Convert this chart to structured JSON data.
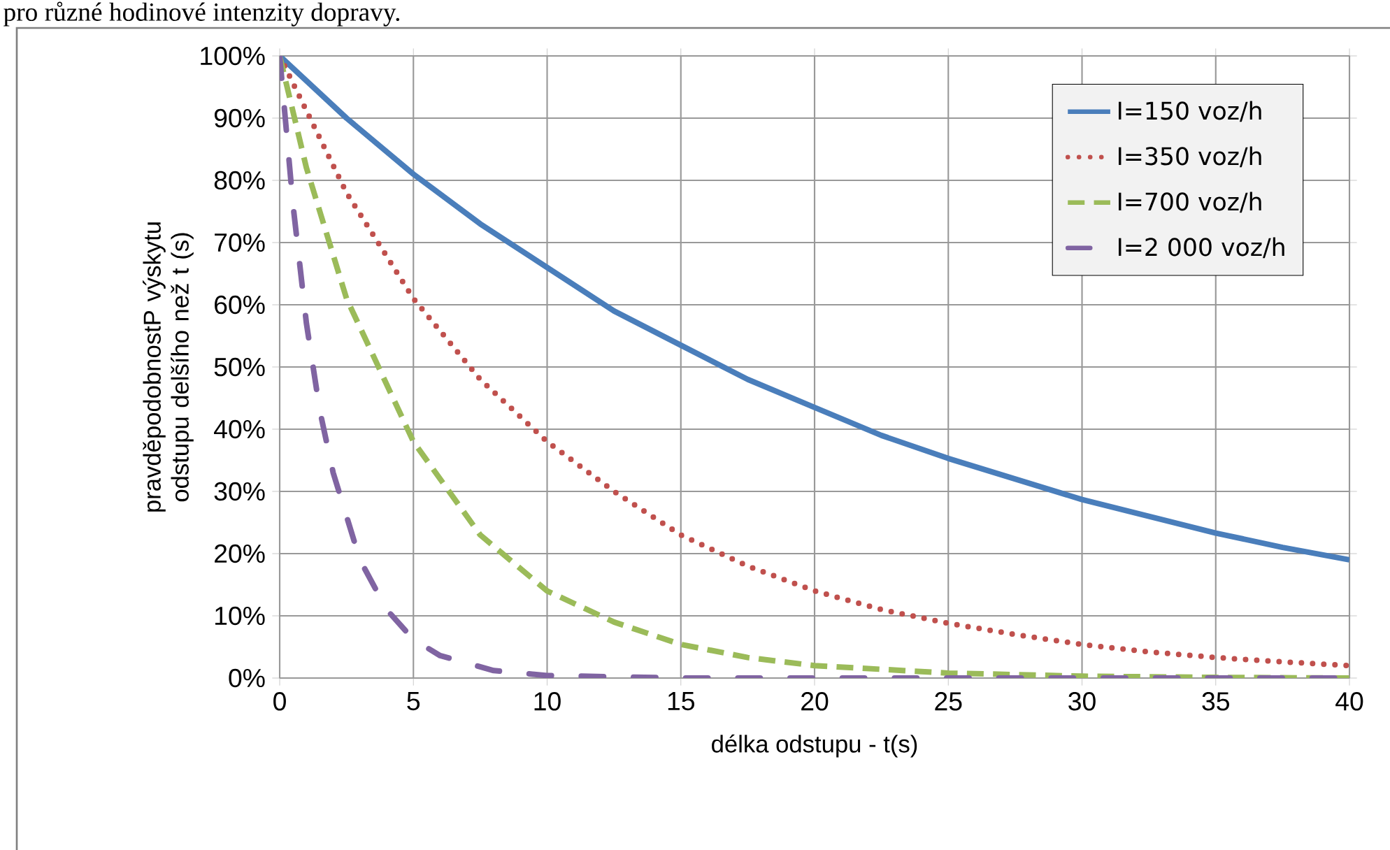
{
  "chart_data": {
    "type": "line",
    "annotations": [
      "pro různé hodinové intenzity dopravy."
    ],
    "xlabel": "délka odstupu - t(s)",
    "ylabel": "pravděpodobnostP  výskytu odstupu delšího než t (s)",
    "xlim": [
      0,
      40
    ],
    "ylim": [
      0,
      100
    ],
    "xticks": [
      0,
      5,
      10,
      15,
      20,
      25,
      30,
      35,
      40
    ],
    "yticks": [
      {
        "value": 0,
        "label": "0%"
      },
      {
        "value": 10,
        "label": "10%"
      },
      {
        "value": 20,
        "label": "20%"
      },
      {
        "value": 30,
        "label": "30%"
      },
      {
        "value": 40,
        "label": "40%"
      },
      {
        "value": 50,
        "label": "50%"
      },
      {
        "value": 60,
        "label": "60%"
      },
      {
        "value": 70,
        "label": "70%"
      },
      {
        "value": 80,
        "label": "80%"
      },
      {
        "value": 90,
        "label": "90%"
      },
      {
        "value": 100,
        "label": "100%"
      }
    ],
    "grid": true,
    "legend": "top right",
    "series": [
      {
        "name": "I=150 voz/h",
        "color": "#4a7ebb",
        "line_style": "solid",
        "x": [
          0,
          2.5,
          5,
          7.5,
          10,
          12.5,
          15,
          17.5,
          20,
          22.5,
          25,
          27.5,
          30,
          32.5,
          35,
          37.5,
          40
        ],
        "values": [
          100,
          90,
          81,
          73,
          66,
          59,
          53.5,
          48,
          43.5,
          39,
          35.3,
          32,
          28.7,
          26,
          23.3,
          21,
          19
        ]
      },
      {
        "name": "I=350 voz/h",
        "color": "#c0504d",
        "line_style": "dotted",
        "x": [
          0,
          2.5,
          5,
          7.5,
          10,
          12.5,
          15,
          17.5,
          20,
          22.5,
          25,
          27.5,
          30,
          32.5,
          35,
          37.5,
          40
        ],
        "values": [
          100,
          78,
          61,
          48,
          38,
          30,
          23,
          18,
          14,
          11,
          8.8,
          7,
          5.4,
          4.2,
          3.3,
          2.6,
          2
        ]
      },
      {
        "name": "I=700 voz/h",
        "color": "#9bbb59",
        "line_style": "dashed",
        "x": [
          0,
          1,
          2.5,
          5,
          7.5,
          10,
          12.5,
          15,
          17.5,
          20,
          25,
          30,
          35,
          40
        ],
        "values": [
          100,
          82,
          61,
          38,
          23,
          14,
          9,
          5.4,
          3.3,
          2,
          0.8,
          0.3,
          0.1,
          0
        ]
      },
      {
        "name": "I=2 000 voz/h",
        "color": "#8064a2",
        "line_style": "dashdot",
        "x": [
          0,
          0.5,
          1,
          1.5,
          2,
          3,
          4,
          5,
          6,
          8,
          10,
          15,
          20,
          30,
          40
        ],
        "values": [
          100,
          76,
          57,
          43,
          33,
          19,
          11,
          6.2,
          3.6,
          1.2,
          0.4,
          0,
          0,
          0,
          0
        ]
      }
    ]
  }
}
